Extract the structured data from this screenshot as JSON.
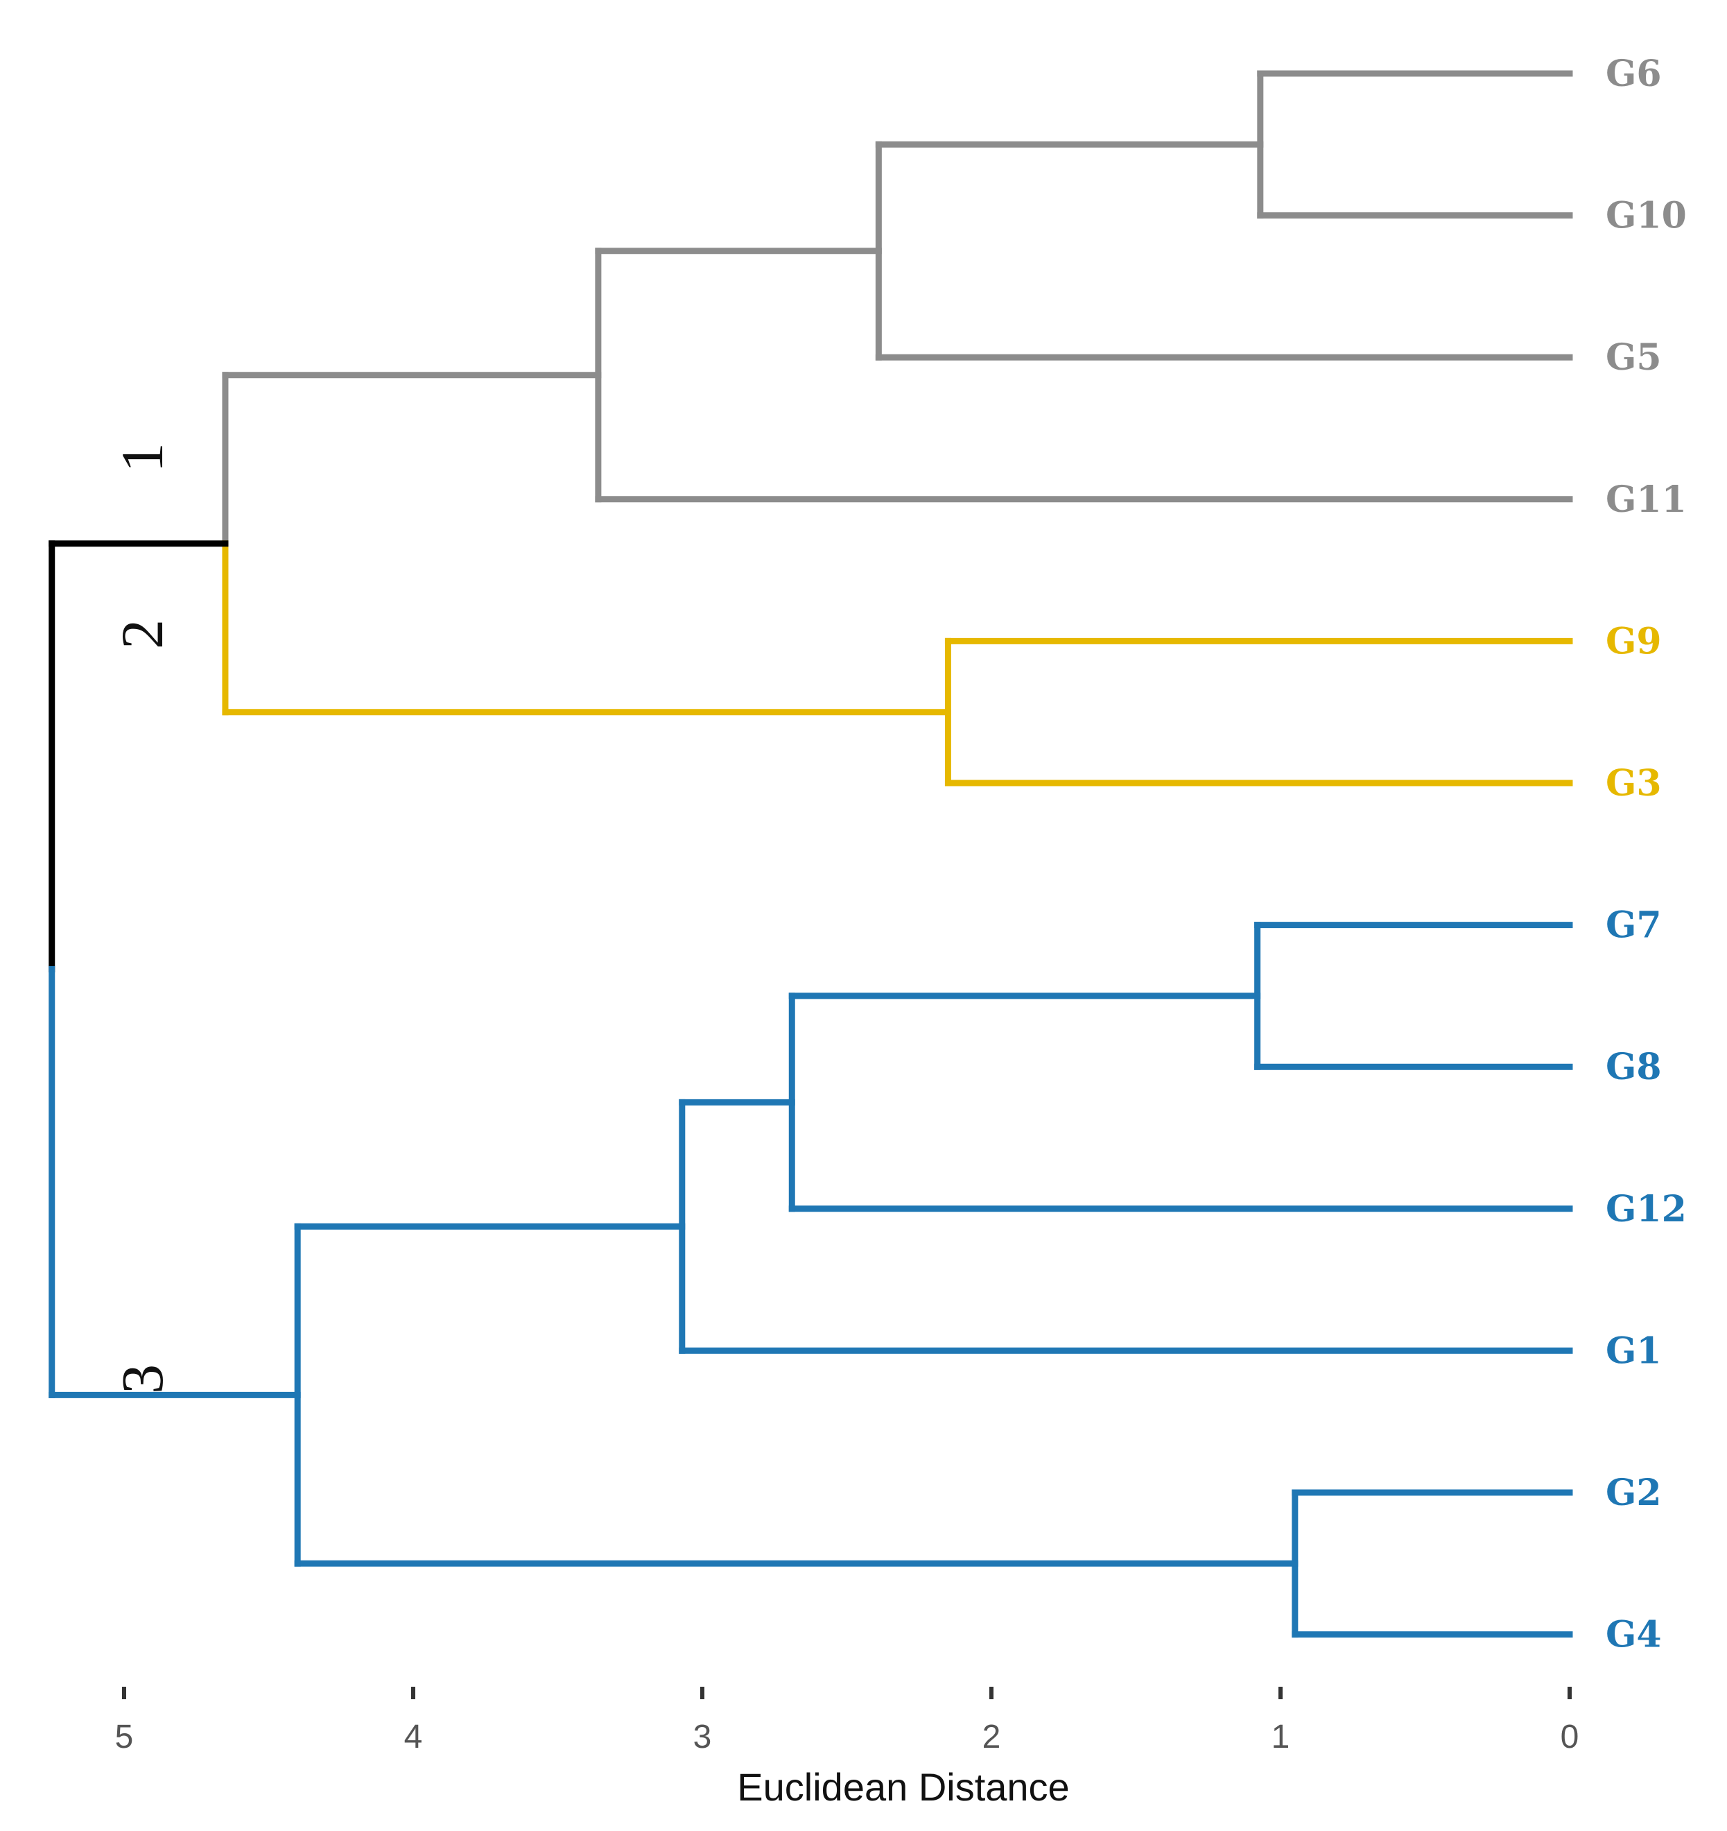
{
  "chart_data": {
    "type": "dendrogram",
    "title": "",
    "xlabel": "Euclidean Distance",
    "ylabel": "",
    "xlim": [
      5.25,
      0
    ],
    "x_ticks": [
      5,
      4,
      3,
      2,
      1,
      0
    ],
    "x_tick_labels": [
      "5",
      "4",
      "3",
      "2",
      "1",
      "0"
    ],
    "orientation": "leaves-right",
    "leaf_order": [
      "G6",
      "G10",
      "G5",
      "G11",
      "G9",
      "G3",
      "G7",
      "G8",
      "G12",
      "G1",
      "G2",
      "G4"
    ],
    "clusters": [
      {
        "label": "1",
        "color": "#8c8c8c",
        "members": [
          "G6",
          "G10",
          "G5",
          "G11"
        ]
      },
      {
        "label": "2",
        "color": "#e6b800",
        "members": [
          "G9",
          "G3"
        ]
      },
      {
        "label": "3",
        "color": "#1f77b4",
        "members": [
          "G7",
          "G8",
          "G12",
          "G1",
          "G2",
          "G4"
        ]
      }
    ],
    "root_color": "#000000",
    "merges": [
      {
        "id": "m1",
        "left": "G6",
        "right": "G10",
        "height": 1.07
      },
      {
        "id": "m2",
        "left": "m1",
        "right": "G5",
        "height": 2.39
      },
      {
        "id": "m3",
        "left": "m2",
        "right": "G11",
        "height": 3.36
      },
      {
        "id": "m4",
        "left": "G9",
        "right": "G3",
        "height": 2.15
      },
      {
        "id": "m5",
        "left": "m3",
        "right": "m4",
        "height": 4.65
      },
      {
        "id": "m6",
        "left": "G7",
        "right": "G8",
        "height": 1.08
      },
      {
        "id": "m7",
        "left": "m6",
        "right": "G12",
        "height": 2.69
      },
      {
        "id": "m8",
        "left": "m7",
        "right": "G1",
        "height": 3.07
      },
      {
        "id": "m9",
        "left": "G2",
        "right": "G4",
        "height": 0.95
      },
      {
        "id": "m10",
        "left": "m8",
        "right": "m9",
        "height": 4.4
      },
      {
        "id": "root",
        "left": "m5",
        "right": "m10",
        "height": 5.25
      }
    ]
  }
}
